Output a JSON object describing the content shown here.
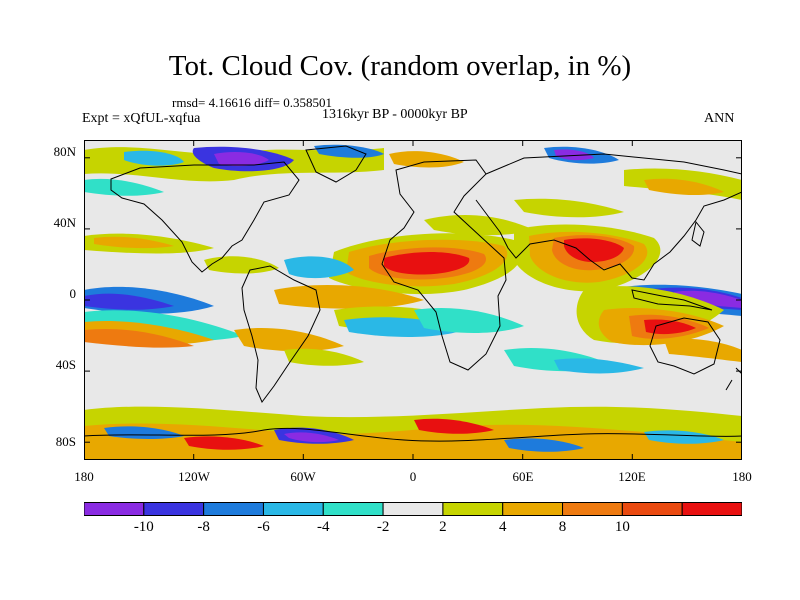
{
  "header": {
    "title": "Tot. Cloud Cov. (random overlap, in %)",
    "stats": "rmsd= 4.16616 diff= 0.358501",
    "experiment": "Expt = xQfUL-xqfua",
    "period": "1316kyr BP - 0000kyr BP",
    "season": "ANN"
  },
  "map": {
    "projection": "cylindrical equidistant",
    "lon_range": [
      -180,
      180
    ],
    "lat_range": [
      -90,
      90
    ],
    "lat_tick_labels": [
      "80N",
      "40N",
      "0",
      "40S",
      "80S"
    ],
    "lon_tick_labels": [
      "180",
      "120W",
      "60W",
      "0",
      "60E",
      "120E",
      "180"
    ],
    "anomaly_regions": [
      {
        "name": "Sahara / North Africa",
        "sign": "positive",
        "level": "8-10"
      },
      {
        "name": "Arabia / South Asia",
        "sign": "positive",
        "level": "4-10"
      },
      {
        "name": "Indonesia / West Pacific",
        "sign": "positive",
        "level": "4-10"
      },
      {
        "name": "Equatorial West Pacific",
        "sign": "negative",
        "level": "-10 to -6"
      },
      {
        "name": "Equatorial East Pacific",
        "sign": "negative",
        "level": "-10 to -4"
      },
      {
        "name": "Tropical Atlantic",
        "sign": "negative",
        "level": "-4 to -2"
      },
      {
        "name": "Canadian Arctic",
        "sign": "negative",
        "level": "-10 to -6"
      },
      {
        "name": "Southern Ocean",
        "sign": "mixed",
        "level": "-10 to 10"
      }
    ]
  },
  "colorbar": {
    "labels": [
      "-10",
      "-8",
      "-6",
      "-4",
      "-2",
      "2",
      "4",
      "8",
      "10"
    ],
    "colors": [
      "#8a2be2",
      "#3a34e0",
      "#1e7bdc",
      "#2ab8e6",
      "#30e0c8",
      "#e8e8e8",
      "#c6d400",
      "#e8a800",
      "#ee7a10",
      "#ea4a10",
      "#e81010"
    ]
  }
}
